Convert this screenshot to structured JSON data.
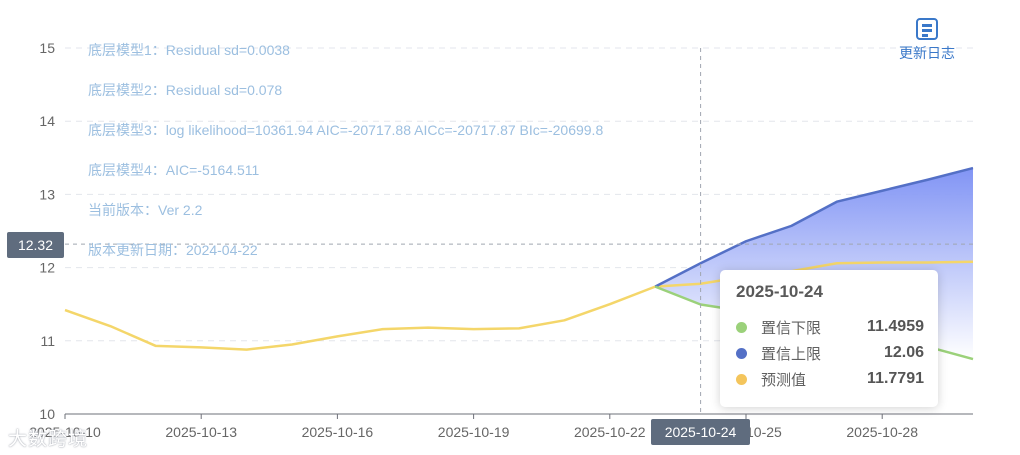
{
  "annotations": [
    "底层模型1：Residual sd=0.0038",
    "底层模型2：Residual sd=0.078",
    "底层模型3：log likelihood=10361.94 AIC=-20717.88 AICc=-20717.87 BIc=-20699.8",
    "底层模型4：AIC=-5164.511",
    "当前版本：Ver 2.2",
    "版本更新日期：2024-04-22"
  ],
  "changelog_label": "更新日志",
  "changelog_icon": "document-icon",
  "crosshair": {
    "y_value_label": "12.32",
    "y_value": 12.32,
    "x_value_label": "2025-10-24"
  },
  "tooltip": {
    "date": "2025-10-24",
    "rows": [
      {
        "name": "置信下限",
        "value": "11.4959",
        "color": "#9bd17a"
      },
      {
        "name": "置信上限",
        "value": "12.06",
        "color": "#5470c6"
      },
      {
        "name": "预测值",
        "value": "11.7791",
        "color": "#f4c55c"
      }
    ]
  },
  "watermark": "大数跨境",
  "chart_data": {
    "type": "line",
    "ylim": [
      10,
      15
    ],
    "yticks": [
      10,
      11,
      12,
      13,
      14,
      15
    ],
    "x": [
      "2025-10-10",
      "2025-10-11",
      "2025-10-12",
      "2025-10-13",
      "2025-10-14",
      "2025-10-15",
      "2025-10-16",
      "2025-10-17",
      "2025-10-18",
      "2025-10-19",
      "2025-10-20",
      "2025-10-21",
      "2025-10-22",
      "2025-10-23",
      "2025-10-24",
      "2025-10-25",
      "2025-10-26",
      "2025-10-27",
      "2025-10-28",
      "2025-10-29",
      "2025-10-30"
    ],
    "xtick_labels": [
      "2025-10-10",
      "2025-10-13",
      "2025-10-16",
      "2025-10-19",
      "2025-10-22",
      "2025-10-25",
      "2025-10-28"
    ],
    "series": [
      {
        "name": "预测值",
        "color": "#f4d66a",
        "values": [
          11.42,
          11.2,
          10.93,
          10.91,
          10.88,
          10.95,
          11.06,
          11.16,
          11.18,
          11.16,
          11.17,
          11.28,
          11.5,
          11.74,
          11.7791,
          11.88,
          11.95,
          12.06,
          12.07,
          12.07,
          12.08
        ]
      },
      {
        "name": "置信上限",
        "color": "#5470c6",
        "values": [
          null,
          null,
          null,
          null,
          null,
          null,
          null,
          null,
          null,
          null,
          null,
          null,
          null,
          11.74,
          12.06,
          12.36,
          12.57,
          12.9,
          13.05,
          13.2,
          13.36
        ]
      },
      {
        "name": "置信下限",
        "color": "#9bd17a",
        "values": [
          null,
          null,
          null,
          null,
          null,
          null,
          null,
          null,
          null,
          null,
          null,
          null,
          null,
          11.74,
          11.4959,
          11.4,
          11.3,
          11.2,
          11.05,
          10.92,
          10.75
        ]
      }
    ],
    "band_fill": {
      "top": "#7b8ff4",
      "bottom": "#ffffff"
    }
  }
}
